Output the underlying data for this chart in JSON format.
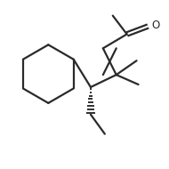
{
  "background_color": "#ffffff",
  "line_color": "#2a2a2a",
  "line_width": 1.6,
  "figure_size": [
    1.9,
    1.9
  ],
  "dpi": 100,
  "xlim": [
    0.0,
    9.5
  ],
  "ylim": [
    0.5,
    9.5
  ]
}
